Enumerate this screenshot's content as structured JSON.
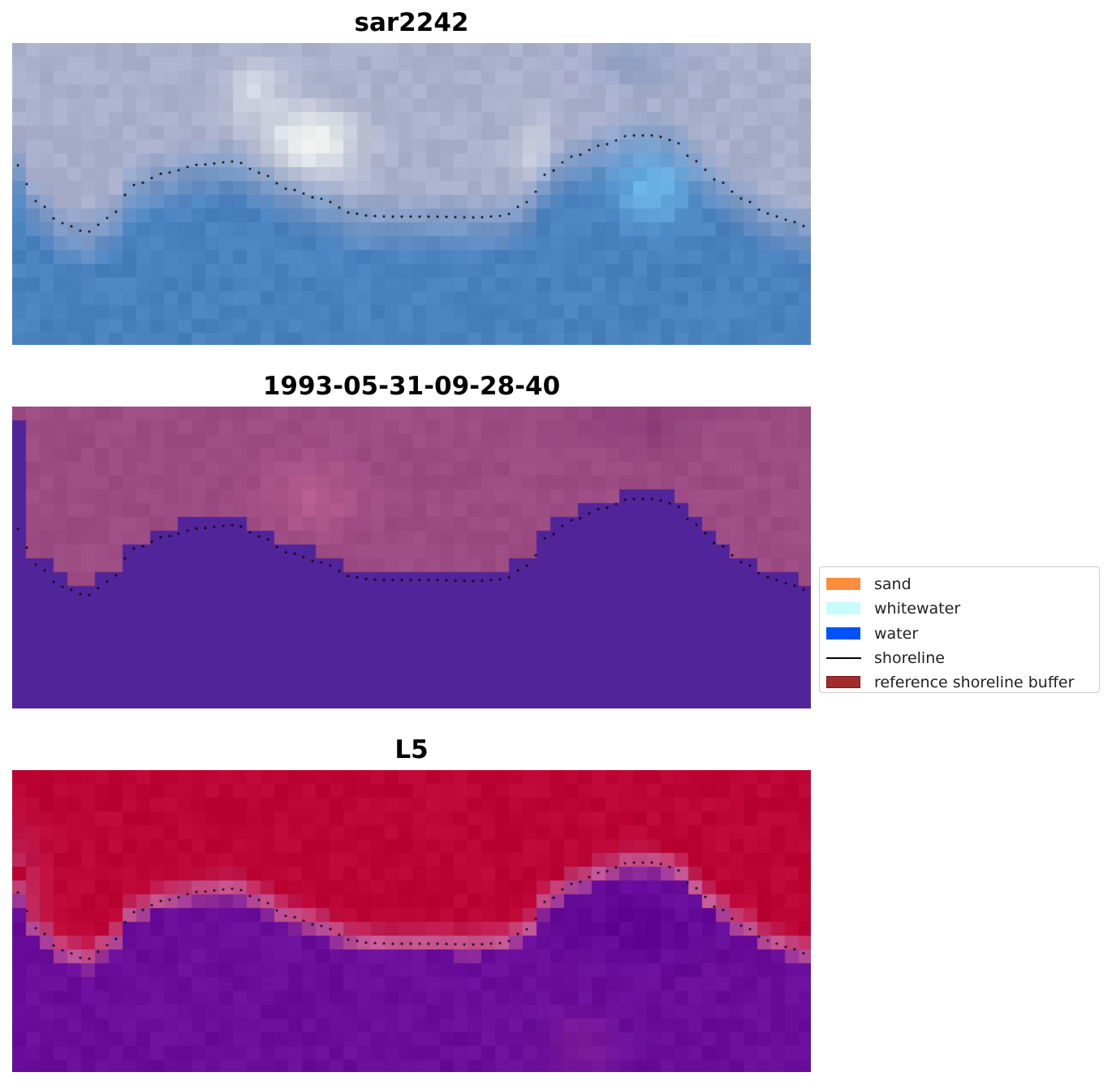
{
  "panels": [
    {
      "title": "sar2242",
      "kind": "rgb"
    },
    {
      "title": "1993-05-31-09-28-40",
      "kind": "classified"
    },
    {
      "title": "L5",
      "kind": "probability"
    }
  ],
  "legend": {
    "items": [
      {
        "label": "sand",
        "type": "patch",
        "color": "#ff8c3a",
        "border": "#ff8c3a"
      },
      {
        "label": "whitewater",
        "type": "patch",
        "color": "#c8fbfb",
        "border": "#c8fbfb"
      },
      {
        "label": "water",
        "type": "patch",
        "color": "#0052ff",
        "border": "#0052ff"
      },
      {
        "label": "shoreline",
        "type": "line",
        "color": "#000000"
      },
      {
        "label": "reference shoreline buffer",
        "type": "patch",
        "color": "#a02c2c",
        "border": "#7a1818"
      }
    ]
  },
  "colors": {
    "water_rgb": "#4a82c0",
    "land_rgb": "#aab0cc",
    "class_water": "#52249a",
    "class_land": "#9c4b83",
    "prob_land": "#bc0535",
    "prob_water": "#6a0d9a",
    "shoreline_dots": "#000000"
  }
}
